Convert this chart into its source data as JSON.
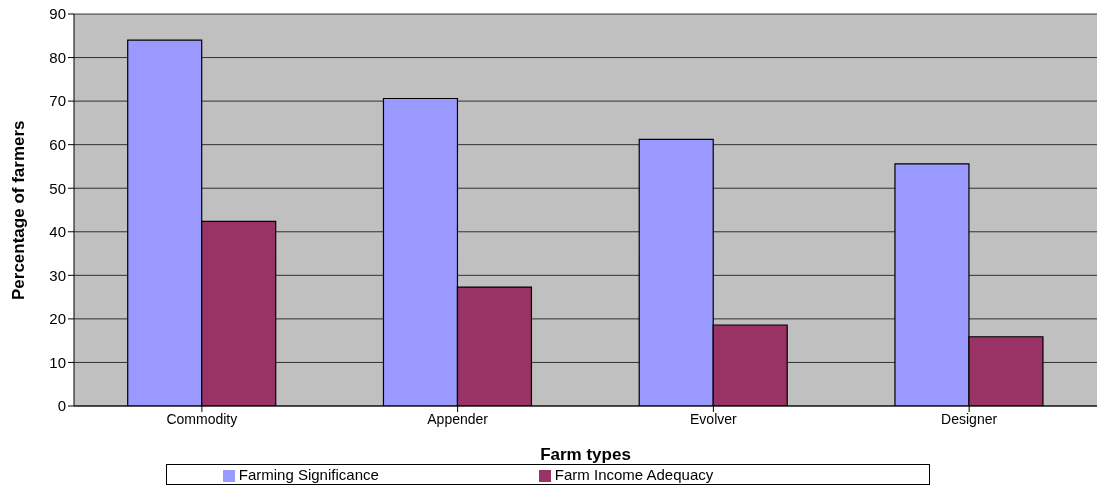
{
  "chart_data": {
    "type": "bar",
    "xlabel": "Farm types",
    "ylabel": "Percentage of farmers",
    "categories": [
      "Commodity",
      "Appender",
      "Evolver",
      "Designer"
    ],
    "series": [
      {
        "name": "Farming Significance",
        "color": "#9999ff",
        "values": [
          84,
          70.6,
          61.2,
          55.6
        ]
      },
      {
        "name": "Farm Income Adequacy",
        "color": "#993366",
        "values": [
          42.4,
          27.3,
          18.6,
          15.9
        ]
      }
    ],
    "ylim": [
      0,
      90
    ],
    "yticks": [
      0,
      10,
      20,
      30,
      40,
      50,
      60,
      70,
      80,
      90
    ],
    "grid": "y",
    "legend": "bottom"
  }
}
